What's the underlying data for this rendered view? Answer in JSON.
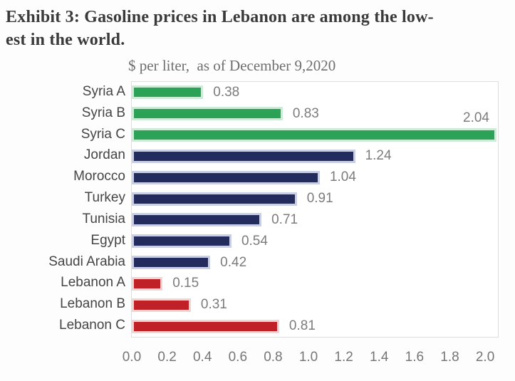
{
  "header": {
    "title_lines": [
      "Exhibit 3: Gasoline prices in Lebanon are among the low-",
      "est in the world."
    ],
    "subtitle": "$ per liter,  as of December 9,2020"
  },
  "chart_data": {
    "type": "bar",
    "orientation": "horizontal",
    "title": "$ per liter, as of December 9,2020",
    "categories": [
      "Syria A",
      "Syria B",
      "Syria C",
      "Jordan",
      "Morocco",
      "Turkey",
      "Tunisia",
      "Egypt",
      "Saudi Arabia",
      "Lebanon A",
      "Lebanon B",
      "Lebanon C"
    ],
    "values": [
      0.38,
      0.83,
      2.04,
      1.24,
      1.04,
      0.91,
      0.71,
      0.54,
      0.42,
      0.15,
      0.31,
      0.81
    ],
    "value_labels": [
      "0.38",
      "0.83",
      "2.04",
      "1.24",
      "1.04",
      "0.91",
      "0.71",
      "0.54",
      "0.42",
      "0.15",
      "0.31",
      "0.81"
    ],
    "groups": [
      "syria",
      "syria",
      "syria",
      "mena",
      "mena",
      "mena",
      "mena",
      "mena",
      "mena",
      "lebanon",
      "lebanon",
      "lebanon"
    ],
    "colors": {
      "syria": "#2ba256",
      "syria_halo": "#cdecd8",
      "mena": "#232c5c",
      "mena_halo": "#c9cfe4",
      "lebanon": "#bf2127",
      "lebanon_halo": "#f1d4d4",
      "value_label": "#7c7c7c",
      "category_label": "#454545",
      "axis_label": "#767676",
      "plot_border": "#dedede"
    },
    "xlabel": "",
    "ylabel": "",
    "xlim": [
      0.0,
      2.0
    ],
    "x_ticks": [
      "0.0",
      "0.2",
      "0.4",
      "0.6",
      "0.8",
      "1.0",
      "1.2",
      "1.4",
      "1.6",
      "1.8",
      "2.0"
    ],
    "grid": false,
    "legend": false,
    "labels_above_bar_indices": [
      2
    ]
  }
}
